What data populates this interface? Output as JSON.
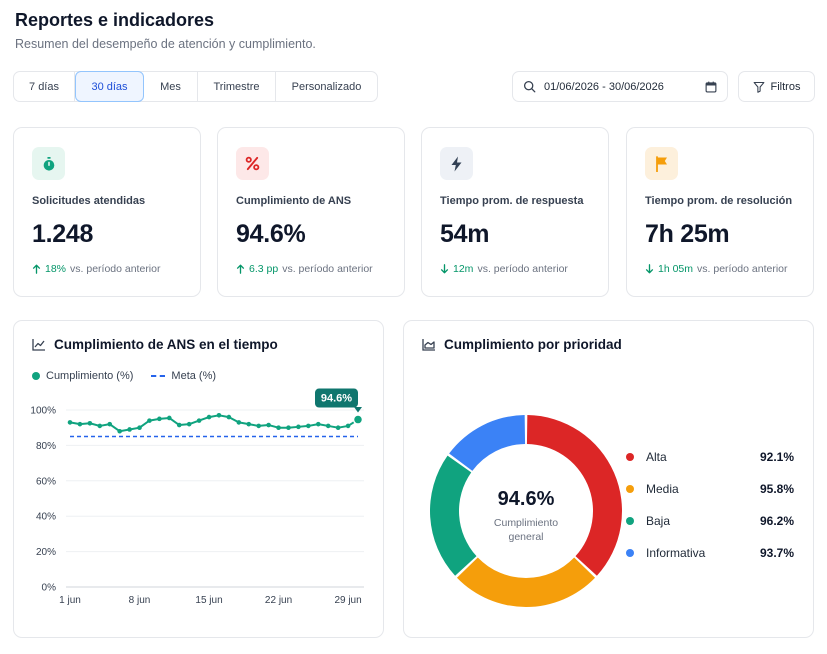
{
  "header": {
    "title": "Reportes e indicadores",
    "subtitle": "Resumen del desempeño de atención y cumplimiento."
  },
  "range_tabs": [
    {
      "label": "7 días",
      "active": false
    },
    {
      "label": "30 días",
      "active": true
    },
    {
      "label": "Mes",
      "active": false
    },
    {
      "label": "Trimestre",
      "active": false
    },
    {
      "label": "Personalizado",
      "active": false
    }
  ],
  "date_range": {
    "value": "01/06/2026 - 30/06/2026"
  },
  "filters_label": "Filtros",
  "kpis": [
    {
      "label": "Solicitudes atendidas",
      "value": "1.248",
      "delta": "18%",
      "delta_direction": "up",
      "delta_suffix": "vs. período anterior",
      "icon": "stopwatch-icon",
      "icon_color": "#10a37f",
      "icon_bg": "#e6f6f0"
    },
    {
      "label": "Cumplimiento de ANS",
      "value": "94.6%",
      "delta": "6.3 pp",
      "delta_direction": "up",
      "delta_suffix": "vs. período anterior",
      "icon": "percent-icon",
      "icon_color": "#dc2626",
      "icon_bg": "#fde8e8"
    },
    {
      "label": "Tiempo prom. de respuesta",
      "value": "54m",
      "delta": "12m",
      "delta_direction": "down",
      "delta_suffix": "vs. período anterior",
      "icon": "lightning-icon",
      "icon_color": "#334155",
      "icon_bg": "#eef1f6"
    },
    {
      "label": "Tiempo prom. de resolución",
      "value": "7h 25m",
      "delta": "1h 05m",
      "delta_direction": "down",
      "delta_suffix": "vs. período anterior",
      "icon": "flag-icon",
      "icon_color": "#f59e0b",
      "icon_bg": "#fdf0dc"
    }
  ],
  "line_card": {
    "title": "Cumplimiento de ANS en el tiempo",
    "icon": "line-chart-icon",
    "legend": [
      {
        "label": "Cumplimiento (%)",
        "color": "#10a37f"
      },
      {
        "label": "Meta (%)",
        "color": "#2563eb"
      }
    ],
    "callout": "94.6%"
  },
  "donut_card": {
    "title": "Cumplimiento por prioridad",
    "icon": "area-chart-icon",
    "center_value": "94.6%",
    "center_label_line1": "Cumplimiento",
    "center_label_line2": "general"
  },
  "chart_data": [
    {
      "type": "line",
      "x": [
        1,
        2,
        3,
        4,
        5,
        6,
        7,
        8,
        9,
        10,
        11,
        12,
        13,
        14,
        15,
        16,
        17,
        18,
        19,
        20,
        21,
        22,
        23,
        24,
        25,
        26,
        27,
        28,
        29,
        30
      ],
      "xticks": [
        {
          "value": 1,
          "label": "1 jun"
        },
        {
          "value": 8,
          "label": "8 jun"
        },
        {
          "value": 15,
          "label": "15 jun"
        },
        {
          "value": 22,
          "label": "22 jun"
        },
        {
          "value": 29,
          "label": "29 jun"
        }
      ],
      "yticks": [
        {
          "value": 0,
          "label": "0%"
        },
        {
          "value": 20,
          "label": "20%"
        },
        {
          "value": 40,
          "label": "40%"
        },
        {
          "value": 60,
          "label": "60%"
        },
        {
          "value": 80,
          "label": "80%"
        },
        {
          "value": 100,
          "label": "100%"
        }
      ],
      "ylim": [
        0,
        100
      ],
      "series": [
        {
          "name": "Cumplimiento (%)",
          "color": "#10a37f",
          "values": [
            93,
            92,
            92.5,
            91,
            92,
            88,
            89,
            90,
            94,
            95,
            95.5,
            91.5,
            92,
            94,
            96,
            97,
            96,
            93,
            92,
            91,
            91.5,
            90,
            90,
            90.5,
            91,
            92,
            91,
            90,
            91,
            94.6
          ]
        },
        {
          "name": "Meta (%)",
          "color": "#2563eb",
          "dashed": true,
          "values": [
            85,
            85,
            85,
            85,
            85,
            85,
            85,
            85,
            85,
            85,
            85,
            85,
            85,
            85,
            85,
            85,
            85,
            85,
            85,
            85,
            85,
            85,
            85,
            85,
            85,
            85,
            85,
            85,
            85,
            85
          ]
        }
      ]
    },
    {
      "type": "pie",
      "categories": [
        "Alta",
        "Media",
        "Baja",
        "Informativa"
      ],
      "labels": [
        "92.1%",
        "95.8%",
        "96.2%",
        "93.7%"
      ],
      "values": [
        37,
        26,
        22,
        15
      ],
      "colors": [
        "#dc2626",
        "#f59e0b",
        "#10a37f",
        "#3b82f6"
      ]
    }
  ]
}
